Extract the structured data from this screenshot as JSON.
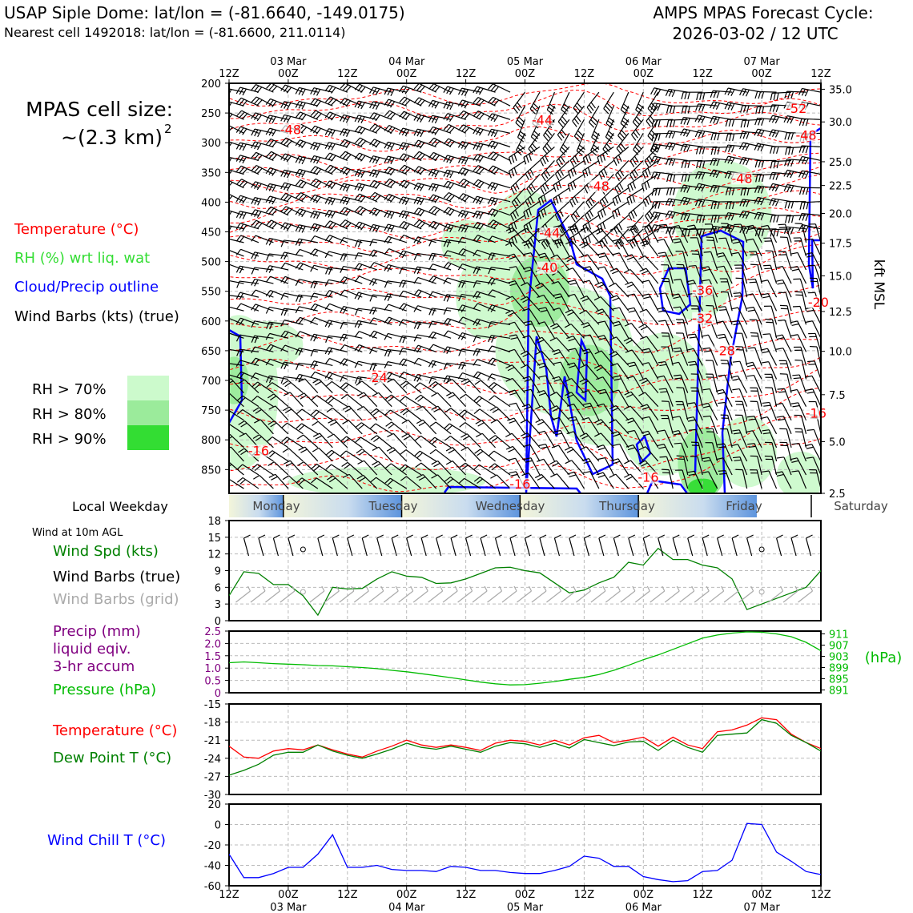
{
  "header": {
    "title_left": "USAP Siple Dome: lat/lon = (-81.6640, -149.0175)",
    "subtitle_left": "Nearest cell 1492018: lat/lon = (-81.6600, 211.0114)",
    "title_right_1": "AMPS MPAS Forecast Cycle:",
    "title_right_2": "2026-03-02 / 12 UTC"
  },
  "colors": {
    "temperature": "#ff0000",
    "rh_label": "#33dd33",
    "cloud": "#0000ff",
    "precip": "#800080",
    "pressure": "#00bb00",
    "dewpoint": "#008000",
    "windchill": "#0000ff",
    "grid_barbs": "#aaaaaa",
    "rh70": "#ccfacc",
    "rh80": "#9beb9b",
    "rh90": "#33dd33"
  },
  "left_labels": {
    "cell_size_line1": "MPAS cell size:",
    "cell_size_line2": "~(2.3 km)",
    "cell_size_sup": "2",
    "temperature": "Temperature (°C)",
    "rh": "RH (%) wrt liq. wat",
    "cloud": "Cloud/Precip outline",
    "wind_barbs": "Wind Barbs (kts) (true)",
    "rh70": "RH > 70%",
    "rh80": "RH > 80%",
    "rh90": "RH > 90%",
    "local_weekday": "Local Weekday",
    "wind_10m": "Wind at 10m AGL",
    "wind_spd": "Wind Spd (kts)",
    "wind_barbs_true": "Wind Barbs (true)",
    "wind_barbs_grid": "Wind Barbs (grid)",
    "precip_1": "Precip (mm)",
    "precip_2": "liquid eqiv.",
    "precip_3": "3-hr accum",
    "pressure": "Pressure (hPa)",
    "temp2": "Temperature (°C)",
    "dewpoint": "Dew Point T (°C)",
    "windchill": "Wind Chill T (°C)"
  },
  "time_axis": {
    "hours": [
      "12Z",
      "00Z",
      "12Z",
      "00Z",
      "12Z",
      "00Z",
      "12Z",
      "00Z",
      "12Z",
      "00Z",
      "12Z"
    ],
    "dates": [
      "",
      "03 Mar",
      "",
      "04 Mar",
      "",
      "05 Mar",
      "",
      "06 Mar",
      "",
      "07 Mar",
      ""
    ]
  },
  "weekdays": [
    "Monday",
    "Tuesday",
    "Wednesday",
    "Thursday",
    "Friday",
    "Saturday"
  ],
  "chart_data": [
    {
      "type": "contour",
      "name": "vertical_cross_section",
      "y_left_label": "",
      "y_left_ticks": [
        200,
        250,
        300,
        350,
        400,
        450,
        500,
        550,
        600,
        650,
        700,
        750,
        800,
        850
      ],
      "y_left_range": [
        200,
        890
      ],
      "y_right_label": "kft MSL",
      "y_right_ticks": [
        {
          "label": "35.0",
          "p": 210
        },
        {
          "label": "30.0",
          "p": 265
        },
        {
          "label": "25.0",
          "p": 332
        },
        {
          "label": "22.5",
          "p": 372
        },
        {
          "label": "20.0",
          "p": 419
        },
        {
          "label": "17.5",
          "p": 469
        },
        {
          "label": "15.0",
          "p": 524
        },
        {
          "label": "12.5",
          "p": 584
        },
        {
          "label": "10.0",
          "p": 651
        },
        {
          "label": "7.5",
          "p": 724
        },
        {
          "label": "5.0",
          "p": 803
        },
        {
          "label": "2.5",
          "p": 890
        }
      ],
      "x_range_hours": [
        0,
        120
      ],
      "temperature_contour_labels": [
        {
          "text": "-48",
          "t": 12.5,
          "p": 283
        },
        {
          "text": "-44",
          "t": 63.5,
          "p": 267
        },
        {
          "text": "-52",
          "t": 115,
          "p": 247
        },
        {
          "text": "-48",
          "t": 117,
          "p": 292
        },
        {
          "text": "-48",
          "t": 75,
          "p": 378
        },
        {
          "text": "-48",
          "t": 104,
          "p": 365
        },
        {
          "text": "-44",
          "t": 65,
          "p": 457
        },
        {
          "text": "-40",
          "t": 64.5,
          "p": 515
        },
        {
          "text": "-36",
          "t": 96,
          "p": 553
        },
        {
          "text": "-32",
          "t": 96,
          "p": 600
        },
        {
          "text": "-28",
          "t": 100.5,
          "p": 655
        },
        {
          "text": "-24",
          "t": 30,
          "p": 700
        },
        {
          "text": "-20",
          "t": 119.5,
          "p": 573
        },
        {
          "text": "-16",
          "t": 119,
          "p": 760
        },
        {
          "text": "-16",
          "t": 6,
          "p": 823
        },
        {
          "text": "-16",
          "t": 59,
          "p": 879
        },
        {
          "text": "-16",
          "t": 85,
          "p": 868
        }
      ]
    },
    {
      "type": "line",
      "name": "wind_speed_10m",
      "ylabel": "Wind Spd (kts)",
      "ylim": [
        0,
        18
      ],
      "yticks": [
        0,
        3,
        6,
        9,
        12,
        15,
        18
      ],
      "x_hours": [
        0,
        3,
        6,
        9,
        12,
        15,
        18,
        21,
        24,
        27,
        30,
        33,
        36,
        39,
        42,
        45,
        48,
        51,
        54,
        57,
        60,
        63,
        66,
        69,
        72,
        75,
        78,
        81,
        84,
        87,
        90,
        93,
        96,
        99,
        102,
        105,
        108,
        111,
        114,
        117,
        120
      ],
      "values": [
        4.5,
        8.8,
        8.5,
        6.5,
        6.5,
        4.5,
        1,
        6,
        5.7,
        5.8,
        7.5,
        8.8,
        8,
        7.8,
        6.7,
        6.8,
        7.5,
        8.5,
        9.5,
        9.6,
        9,
        8.6,
        6.8,
        5,
        5.5,
        6.8,
        7.8,
        10.5,
        10,
        13,
        11,
        11,
        10,
        9.5,
        7.5,
        2,
        3,
        4,
        5,
        6,
        9
      ]
    },
    {
      "type": "line",
      "name": "precip_pressure",
      "ylabel_left": "Precip (mm)",
      "ylim_left": [
        0,
        2.5
      ],
      "yticks_left": [
        "0",
        "0.5",
        "1.0",
        "1.5",
        "2.0",
        "2.5"
      ],
      "ylabel_right": "(hPa)",
      "ylim_right": [
        890,
        912
      ],
      "yticks_right": [
        891,
        895,
        899,
        903,
        907,
        911
      ],
      "precip_values": [],
      "x_hours": [
        0,
        3,
        6,
        9,
        12,
        15,
        18,
        21,
        24,
        27,
        30,
        33,
        36,
        39,
        42,
        45,
        48,
        51,
        54,
        57,
        60,
        63,
        66,
        69,
        72,
        75,
        78,
        81,
        84,
        87,
        90,
        93,
        96,
        99,
        102,
        105,
        108,
        111,
        114,
        117,
        120
      ],
      "pressure_values": [
        900.7,
        901,
        900.7,
        900.4,
        900.2,
        900,
        899.7,
        899.6,
        899.3,
        899,
        898.6,
        898,
        897.5,
        896.8,
        896.1,
        895.4,
        894.6,
        893.8,
        893.2,
        892.8,
        892.9,
        893.4,
        894,
        894.8,
        895.5,
        896.5,
        898,
        899.8,
        901.8,
        903.5,
        905.5,
        907.5,
        909.5,
        910.6,
        911.3,
        911.7,
        911.6,
        911,
        910,
        908,
        905
      ]
    },
    {
      "type": "line",
      "name": "temperature_dewpoint",
      "ylabel": "Temperature (°C)",
      "ylim": [
        -30,
        -15
      ],
      "yticks": [
        -30,
        -27,
        -24,
        -21,
        -18,
        -15
      ],
      "x_hours": [
        0,
        3,
        6,
        9,
        12,
        15,
        18,
        21,
        24,
        27,
        30,
        33,
        36,
        39,
        42,
        45,
        48,
        51,
        54,
        57,
        60,
        63,
        66,
        69,
        72,
        75,
        78,
        81,
        84,
        87,
        90,
        93,
        96,
        99,
        102,
        105,
        108,
        111,
        114,
        117,
        120
      ],
      "series": [
        {
          "name": "Temperature (°C)",
          "values": [
            -22,
            -23.8,
            -24,
            -22.8,
            -22.4,
            -22.6,
            -21.8,
            -22.6,
            -23.3,
            -23.8,
            -22.8,
            -22,
            -21,
            -21.8,
            -22.2,
            -21.8,
            -22.2,
            -22.7,
            -21.5,
            -21,
            -21.2,
            -21.8,
            -21,
            -21.8,
            -20.6,
            -20.2,
            -21.4,
            -21,
            -20.5,
            -22,
            -20.5,
            -21.8,
            -22.4,
            -19.6,
            -19.3,
            -18.5,
            -17.3,
            -17.6,
            -20,
            -21.4,
            -22.4
          ]
        },
        {
          "name": "Dew Point T (°C)",
          "values": [
            -26.8,
            -26,
            -25,
            -23.5,
            -23,
            -23,
            -21.8,
            -22.8,
            -23.5,
            -24,
            -23.3,
            -22.5,
            -21.5,
            -22.2,
            -22.5,
            -22,
            -22.5,
            -23,
            -22,
            -21.4,
            -21.6,
            -22.2,
            -21.5,
            -22.3,
            -20.9,
            -21.4,
            -21.9,
            -21.3,
            -21.2,
            -22.7,
            -21,
            -22.2,
            -23,
            -20.2,
            -20,
            -19.8,
            -17.6,
            -18.2,
            -20.2,
            -21.4,
            -22.8
          ]
        }
      ]
    },
    {
      "type": "line",
      "name": "wind_chill",
      "ylabel": "Wind Chill T (°C)",
      "ylim": [
        -60,
        20
      ],
      "yticks": [
        -60,
        -40,
        -20,
        0,
        20
      ],
      "x_hours": [
        0,
        3,
        6,
        9,
        12,
        15,
        18,
        21,
        24,
        27,
        30,
        33,
        36,
        39,
        42,
        45,
        48,
        51,
        54,
        57,
        60,
        63,
        66,
        69,
        72,
        75,
        78,
        81,
        84,
        87,
        90,
        93,
        96,
        99,
        102,
        105,
        108,
        111,
        114,
        117,
        120
      ],
      "values": [
        -29,
        -52,
        -52,
        -48,
        -42,
        -42,
        -29,
        -10,
        -42,
        -42,
        -40,
        -44,
        -45,
        -45,
        -46,
        -41,
        -42,
        -45,
        -45,
        -47,
        -48,
        -48,
        -45,
        -41,
        -31,
        -33,
        -41,
        -41,
        -51,
        -54,
        -56,
        -55,
        -46,
        -45,
        -35,
        1,
        0,
        -27,
        -36,
        -46,
        -49
      ]
    }
  ]
}
